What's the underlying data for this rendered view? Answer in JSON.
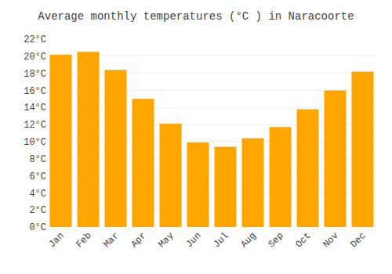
{
  "chart_data": {
    "type": "bar",
    "title": "Average monthly temperatures (°C ) in Naracoorte",
    "categories": [
      "Jan",
      "Feb",
      "Mar",
      "Apr",
      "May",
      "Jun",
      "Jul",
      "Aug",
      "Sep",
      "Oct",
      "Nov",
      "Dec"
    ],
    "values": [
      20.2,
      20.5,
      18.4,
      15.0,
      12.1,
      9.9,
      9.4,
      10.4,
      11.7,
      13.8,
      16.0,
      18.2
    ],
    "color": "#FFA500",
    "ylim": [
      0,
      22
    ],
    "yticks": [
      {
        "value": 0,
        "label": "0°C"
      },
      {
        "value": 2,
        "label": "2°C"
      },
      {
        "value": 4,
        "label": "4°C"
      },
      {
        "value": 6,
        "label": "6°C"
      },
      {
        "value": 8,
        "label": "8°C"
      },
      {
        "value": 10,
        "label": "10°C"
      },
      {
        "value": 12,
        "label": "12°C"
      },
      {
        "value": 14,
        "label": "14°C"
      },
      {
        "value": 16,
        "label": "16°C"
      },
      {
        "value": 18,
        "label": "18°C"
      },
      {
        "value": 20,
        "label": "20°C"
      },
      {
        "value": 22,
        "label": "22°C"
      }
    ],
    "grid": true
  }
}
